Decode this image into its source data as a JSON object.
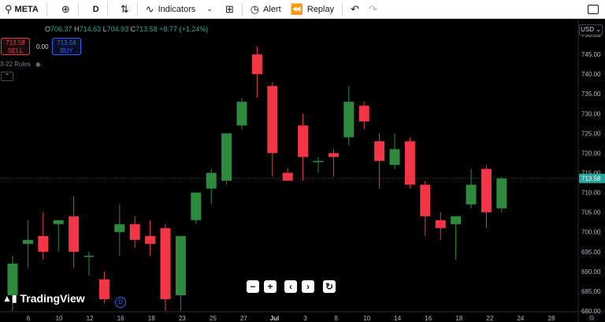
{
  "toolbar": {
    "symbol": "META",
    "interval": "D",
    "indicators_label": "Indicators",
    "alert_label": "Alert",
    "replay_label": "Replay"
  },
  "legend": {
    "o_label": "O",
    "o_value": "706.37",
    "h_label": "H",
    "h_value": "714.63",
    "l_label": "L",
    "l_value": "704.93",
    "c_label": "C",
    "c_value": "713.58",
    "change": "+8.77 (+1.24%)"
  },
  "trade": {
    "sell_price": "713.58",
    "sell_label": "SELL",
    "spread": "0.00",
    "buy_price": "713.58",
    "buy_label": "BUY"
  },
  "study_label": "3-22 Rules",
  "currency": "USD",
  "tv_brand": "TradingView",
  "d_badge": "D",
  "colors": {
    "up": "#26a69a",
    "up_body": "#2e8b3d",
    "down": "#f23645",
    "down_body": "#f23645",
    "last_price_bg": "#26a69a"
  },
  "chart_data": {
    "type": "candlestick",
    "y_axis": {
      "ylim": [
        680,
        753
      ],
      "ticks": [
        "750.00",
        "745.00",
        "740.00",
        "735.00",
        "730.00",
        "725.00",
        "720.00",
        "715.00",
        "710.00",
        "705.00",
        "700.00",
        "695.00",
        "690.00",
        "685.00",
        "680.00"
      ]
    },
    "x_axis_ticks": [
      "6",
      "10",
      "12",
      "16",
      "18",
      "23",
      "25",
      "27",
      "Jul",
      "3",
      "8",
      "10",
      "14",
      "16",
      "18",
      "22",
      "24",
      "28"
    ],
    "last_price": 713.58,
    "last_price_label": "713.58",
    "candles": [
      {
        "o": 684,
        "h": 694,
        "l": 680,
        "c": 692
      },
      {
        "o": 697,
        "h": 703,
        "l": 691,
        "c": 698
      },
      {
        "o": 699,
        "h": 705,
        "l": 693,
        "c": 695
      },
      {
        "o": 702,
        "h": 703,
        "l": 695,
        "c": 703
      },
      {
        "o": 704,
        "h": 709,
        "l": 691,
        "c": 695
      },
      {
        "o": 694,
        "h": 695,
        "l": 689,
        "c": 694
      },
      {
        "o": 688,
        "h": 690,
        "l": 682,
        "c": 683
      },
      {
        "o": 700,
        "h": 707,
        "l": 694,
        "c": 702
      },
      {
        "o": 702,
        "h": 704,
        "l": 696,
        "c": 698
      },
      {
        "o": 699,
        "h": 703,
        "l": 694,
        "c": 697
      },
      {
        "o": 701,
        "h": 702,
        "l": 680,
        "c": 683
      },
      {
        "o": 684,
        "h": 699,
        "l": 680,
        "c": 699
      },
      {
        "o": 703,
        "h": 710,
        "l": 702,
        "c": 710
      },
      {
        "o": 711,
        "h": 716,
        "l": 707,
        "c": 715
      },
      {
        "o": 713,
        "h": 725,
        "l": 712,
        "c": 725
      },
      {
        "o": 727,
        "h": 734,
        "l": 726,
        "c": 733
      },
      {
        "o": 745,
        "h": 747,
        "l": 734,
        "c": 740
      },
      {
        "o": 737,
        "h": 738,
        "l": 714,
        "c": 720
      },
      {
        "o": 715,
        "h": 716,
        "l": 713,
        "c": 713
      },
      {
        "o": 727,
        "h": 730,
        "l": 713,
        "c": 719
      },
      {
        "o": 718,
        "h": 719,
        "l": 715,
        "c": 718
      },
      {
        "o": 720,
        "h": 721,
        "l": 714,
        "c": 719
      },
      {
        "o": 724,
        "h": 737,
        "l": 722,
        "c": 733
      },
      {
        "o": 732,
        "h": 733,
        "l": 726,
        "c": 728
      },
      {
        "o": 723,
        "h": 725,
        "l": 711,
        "c": 718
      },
      {
        "o": 717,
        "h": 725,
        "l": 716,
        "c": 721
      },
      {
        "o": 723,
        "h": 724,
        "l": 711,
        "c": 712
      },
      {
        "o": 712,
        "h": 713,
        "l": 699,
        "c": 704
      },
      {
        "o": 703,
        "h": 705,
        "l": 698,
        "c": 701
      },
      {
        "o": 702,
        "h": 704,
        "l": 693,
        "c": 704
      },
      {
        "o": 707,
        "h": 716,
        "l": 706,
        "c": 712
      },
      {
        "o": 716,
        "h": 717,
        "l": 701,
        "c": 705
      },
      {
        "o": 706,
        "h": 714,
        "l": 705,
        "c": 713.58
      }
    ]
  }
}
